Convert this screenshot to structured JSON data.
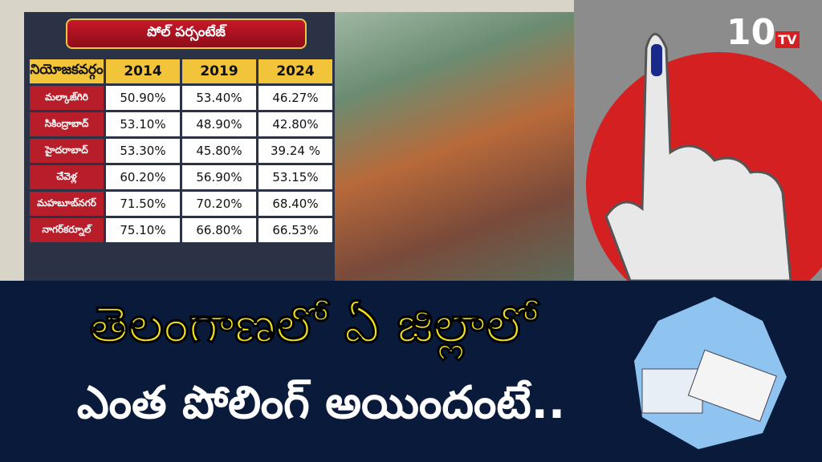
{
  "logo": {
    "number": "10",
    "suffix": "TV"
  },
  "table": {
    "title": "పోల్ పర్సంటేజ్",
    "header": [
      "నియోజకవర్గం",
      "2014",
      "2019",
      "2024"
    ],
    "rows": [
      [
        "మల్కాజ్‌గిరి",
        "50.90%",
        "53.40%",
        "46.27%"
      ],
      [
        "సికింద్రాబాద్",
        "53.10%",
        "48.90%",
        "42.80%"
      ],
      [
        "హైదరాబాద్",
        "53.30%",
        "45.80%",
        "39.24 %"
      ],
      [
        "చేవెళ్ల",
        "60.20%",
        "56.90%",
        "53.15%"
      ],
      [
        "మహబూబ్‌నగర్",
        "71.50%",
        "70.20%",
        "68.40%"
      ],
      [
        "నాగర్‌కర్నూల్",
        "75.10%",
        "66.80%",
        "66.53%"
      ]
    ]
  },
  "headline": {
    "line1": "తెలంగాణలో ఏ జిల్లాలో",
    "line2": "ఎంత పోలింగ్ అయిందంటే.."
  }
}
